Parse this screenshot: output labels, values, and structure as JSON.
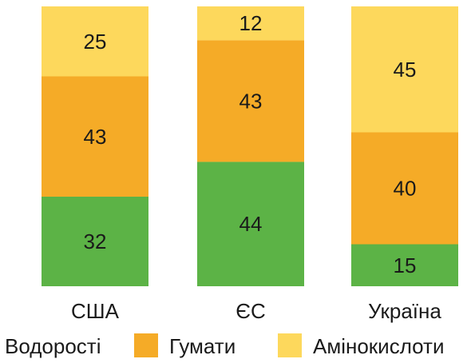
{
  "chart_data": {
    "type": "bar",
    "stacked": true,
    "normalized_percent": true,
    "categories": [
      "США",
      "ЄС",
      "Україна"
    ],
    "series": [
      {
        "name": "Водорості",
        "values": [
          32,
          44,
          15
        ],
        "color": "#5cb346"
      },
      {
        "name": "Гумати",
        "values": [
          43,
          43,
          40
        ],
        "color": "#f5ab27"
      },
      {
        "name": "Амінокислоти",
        "values": [
          25,
          12,
          45
        ],
        "color": "#fdd85c"
      }
    ],
    "ylim": [
      0,
      100
    ],
    "grid": false,
    "legend_position": "bottom"
  }
}
